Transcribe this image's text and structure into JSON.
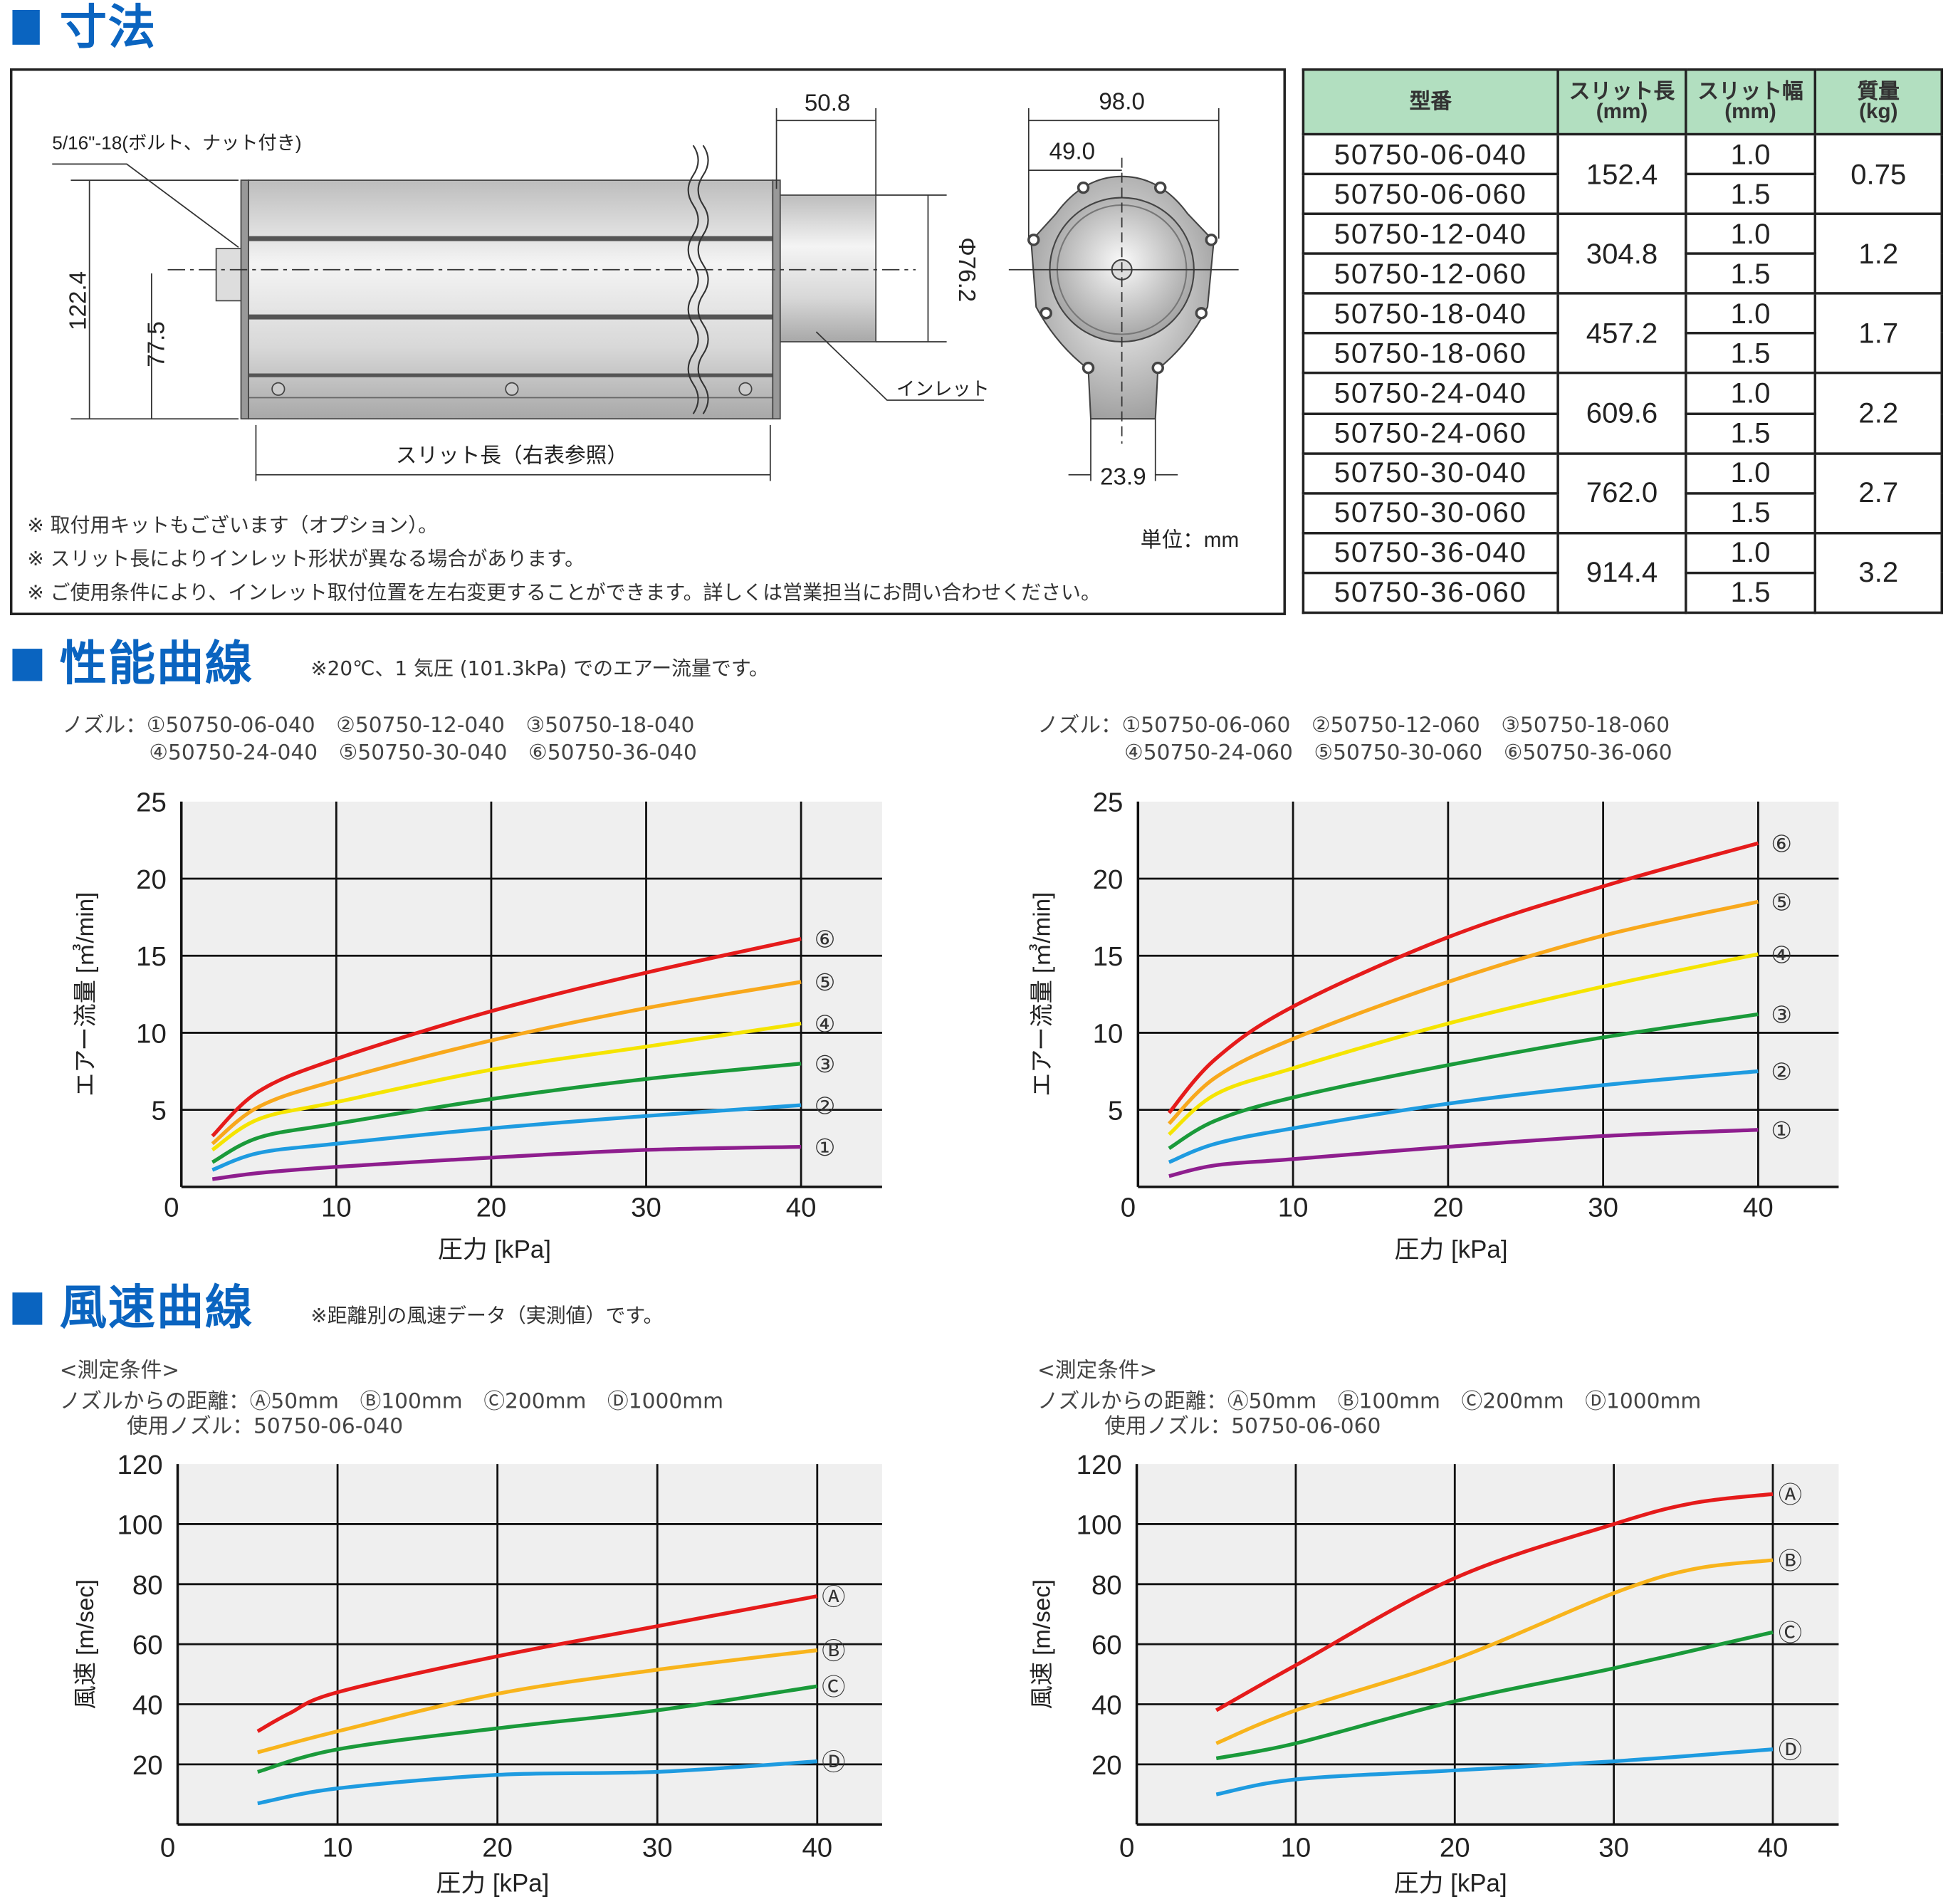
{
  "sections": {
    "dimensions": {
      "title": "寸法"
    },
    "performance": {
      "title": "性能曲線",
      "note": "※20℃、1 気圧 (101.3kPa) でのエアー流量です。"
    },
    "wind": {
      "title": "風速曲線",
      "note": "※距離別の風速データ（実測値）です。"
    }
  },
  "drawing": {
    "bolt_label": "5/16\"-18(ボルト、ナット付き)",
    "dim_height_total": "122.4",
    "dim_height_center": "77.5",
    "dim_inlet_length": "50.8",
    "dim_inlet_diameter": "Φ76.2",
    "inlet_label": "インレット",
    "slit_length_label": "スリット長（右表参照）",
    "dim_width": "98.0",
    "dim_half_width": "49.0",
    "dim_neck": "23.9",
    "unit": "単位：mm",
    "notes": [
      "※ 取付用キットもございます（オプション）。",
      "※ スリット長によりインレット形状が異なる場合があります。",
      "※ ご使用条件により、インレット取付位置を左右変更することができます。詳しくは営業担当にお問い合わせください。"
    ]
  },
  "spec_table": {
    "headers": {
      "model": "型番",
      "slit_length": "スリット長",
      "slit_length_unit": "(mm)",
      "slit_width": "スリット幅",
      "slit_width_unit": "(mm)",
      "mass": "質量",
      "mass_unit": "(kg)"
    },
    "header_color": "#b2dfc0",
    "groups": [
      {
        "slit_length": "152.4",
        "mass": "0.75",
        "variants": [
          {
            "model": "50750-06-040",
            "width": "1.0"
          },
          {
            "model": "50750-06-060",
            "width": "1.5"
          }
        ]
      },
      {
        "slit_length": "304.8",
        "mass": "1.2",
        "variants": [
          {
            "model": "50750-12-040",
            "width": "1.0"
          },
          {
            "model": "50750-12-060",
            "width": "1.5"
          }
        ]
      },
      {
        "slit_length": "457.2",
        "mass": "1.7",
        "variants": [
          {
            "model": "50750-18-040",
            "width": "1.0"
          },
          {
            "model": "50750-18-060",
            "width": "1.5"
          }
        ]
      },
      {
        "slit_length": "609.6",
        "mass": "2.2",
        "variants": [
          {
            "model": "50750-24-040",
            "width": "1.0"
          },
          {
            "model": "50750-24-060",
            "width": "1.5"
          }
        ]
      },
      {
        "slit_length": "762.0",
        "mass": "2.7",
        "variants": [
          {
            "model": "50750-30-040",
            "width": "1.0"
          },
          {
            "model": "50750-30-060",
            "width": "1.5"
          }
        ]
      },
      {
        "slit_length": "914.4",
        "mass": "3.2",
        "variants": [
          {
            "model": "50750-36-040",
            "width": "1.0"
          },
          {
            "model": "50750-36-060",
            "width": "1.5"
          }
        ]
      }
    ]
  },
  "legends": {
    "perf_left": [
      "ノズル：①50750-06-040　②50750-12-040　③50750-18-040",
      "④50750-24-040　⑤50750-30-040　⑥50750-36-040"
    ],
    "perf_right": [
      "ノズル：①50750-06-060　②50750-12-060　③50750-18-060",
      "④50750-24-060　⑤50750-30-060　⑥50750-36-060"
    ],
    "wind_left": [
      "<測定条件>",
      "ノズルからの距離：Ⓐ50mm　Ⓑ100mm　Ⓒ200mm　Ⓓ1000mm",
      "使用ノズル：50750-06-040"
    ],
    "wind_right": [
      "<測定条件>",
      "ノズルからの距離：Ⓐ50mm　Ⓑ100mm　Ⓒ200mm　Ⓓ1000mm",
      "使用ノズル：50750-06-060"
    ]
  },
  "chart_data": [
    {
      "type": "line",
      "xlabel": "圧力 [kPa]",
      "ylabel": "エアー流量 [㎥/min]",
      "xlim": [
        0,
        45
      ],
      "ylim": [
        0,
        25
      ],
      "xticks": [
        0,
        10,
        20,
        30,
        40
      ],
      "yticks": [
        5,
        10,
        15,
        20,
        25
      ],
      "grid": true,
      "series": [
        {
          "name": "①",
          "color": "#8e1e8e",
          "points": [
            [
              2,
              0.5
            ],
            [
              5,
              0.9
            ],
            [
              10,
              1.3
            ],
            [
              20,
              1.9
            ],
            [
              30,
              2.4
            ],
            [
              40,
              2.6
            ]
          ]
        },
        {
          "name": "②",
          "color": "#1e9be0",
          "points": [
            [
              2,
              1.1
            ],
            [
              5,
              2.2
            ],
            [
              10,
              2.8
            ],
            [
              20,
              3.8
            ],
            [
              30,
              4.6
            ],
            [
              40,
              5.3
            ]
          ]
        },
        {
          "name": "③",
          "color": "#1a9a3a",
          "points": [
            [
              2,
              1.6
            ],
            [
              5,
              3.2
            ],
            [
              10,
              4.1
            ],
            [
              20,
              5.7
            ],
            [
              30,
              7.0
            ],
            [
              40,
              8.0
            ]
          ]
        },
        {
          "name": "④",
          "color": "#f5e400",
          "points": [
            [
              2,
              2.4
            ],
            [
              5,
              4.4
            ],
            [
              10,
              5.5
            ],
            [
              20,
              7.6
            ],
            [
              30,
              9.1
            ],
            [
              40,
              10.6
            ]
          ]
        },
        {
          "name": "⑤",
          "color": "#f8a81c",
          "points": [
            [
              2,
              2.8
            ],
            [
              5,
              5.2
            ],
            [
              10,
              6.9
            ],
            [
              20,
              9.5
            ],
            [
              30,
              11.6
            ],
            [
              40,
              13.3
            ]
          ]
        },
        {
          "name": "⑥",
          "color": "#e51b1b",
          "points": [
            [
              2,
              3.3
            ],
            [
              5,
              6.2
            ],
            [
              10,
              8.3
            ],
            [
              20,
              11.4
            ],
            [
              30,
              13.9
            ],
            [
              40,
              16.1
            ]
          ]
        }
      ]
    },
    {
      "type": "line",
      "xlabel": "圧力 [kPa]",
      "ylabel": "エアー流量 [㎥/min]",
      "xlim": [
        0,
        45
      ],
      "ylim": [
        0,
        25
      ],
      "xticks": [
        0,
        10,
        20,
        30,
        40
      ],
      "yticks": [
        5,
        10,
        15,
        20,
        25
      ],
      "grid": true,
      "series": [
        {
          "name": "①",
          "color": "#8e1e8e",
          "points": [
            [
              2,
              0.7
            ],
            [
              5,
              1.4
            ],
            [
              10,
              1.8
            ],
            [
              20,
              2.6
            ],
            [
              30,
              3.3
            ],
            [
              40,
              3.7
            ]
          ]
        },
        {
          "name": "②",
          "color": "#1e9be0",
          "points": [
            [
              2,
              1.6
            ],
            [
              5,
              2.8
            ],
            [
              10,
              3.8
            ],
            [
              20,
              5.4
            ],
            [
              30,
              6.6
            ],
            [
              40,
              7.5
            ]
          ]
        },
        {
          "name": "③",
          "color": "#1a9a3a",
          "points": [
            [
              2,
              2.5
            ],
            [
              5,
              4.3
            ],
            [
              10,
              5.8
            ],
            [
              20,
              7.9
            ],
            [
              30,
              9.7
            ],
            [
              40,
              11.2
            ]
          ]
        },
        {
          "name": "④",
          "color": "#f5e400",
          "points": [
            [
              2,
              3.4
            ],
            [
              5,
              6.0
            ],
            [
              10,
              7.7
            ],
            [
              20,
              10.6
            ],
            [
              30,
              13.0
            ],
            [
              40,
              15.1
            ]
          ]
        },
        {
          "name": "⑤",
          "color": "#f8a81c",
          "points": [
            [
              2,
              4.1
            ],
            [
              5,
              7.1
            ],
            [
              10,
              9.6
            ],
            [
              20,
              13.3
            ],
            [
              30,
              16.3
            ],
            [
              40,
              18.5
            ]
          ]
        },
        {
          "name": "⑥",
          "color": "#e51b1b",
          "points": [
            [
              2,
              4.8
            ],
            [
              5,
              8.3
            ],
            [
              10,
              11.7
            ],
            [
              20,
              16.2
            ],
            [
              30,
              19.5
            ],
            [
              40,
              22.3
            ]
          ]
        }
      ]
    },
    {
      "type": "line",
      "xlabel": "圧力 [kPa]",
      "ylabel": "風速 [m/sec]",
      "xlim": [
        0,
        44
      ],
      "ylim": [
        0,
        120
      ],
      "xticks": [
        0,
        10,
        20,
        30,
        40
      ],
      "yticks": [
        20,
        40,
        60,
        80,
        100,
        120
      ],
      "grid": true,
      "series": [
        {
          "name": "Ⓐ",
          "color": "#e51b1b",
          "points": [
            [
              5,
              31
            ],
            [
              7,
              37
            ],
            [
              10,
              44
            ],
            [
              20,
              56
            ],
            [
              30,
              66
            ],
            [
              40,
              76
            ]
          ]
        },
        {
          "name": "Ⓑ",
          "color": "#f8b41c",
          "points": [
            [
              5,
              24
            ],
            [
              10,
              31
            ],
            [
              20,
              43.5
            ],
            [
              30,
              51.5
            ],
            [
              40,
              58
            ]
          ]
        },
        {
          "name": "Ⓒ",
          "color": "#1a9a3a",
          "points": [
            [
              5,
              17.5
            ],
            [
              10,
              25
            ],
            [
              20,
              32
            ],
            [
              30,
              38
            ],
            [
              40,
              46
            ]
          ]
        },
        {
          "name": "Ⓓ",
          "color": "#1e9be0",
          "points": [
            [
              5,
              7
            ],
            [
              10,
              12
            ],
            [
              20,
              16.5
            ],
            [
              30,
              17.5
            ],
            [
              40,
              21
            ]
          ]
        }
      ]
    },
    {
      "type": "line",
      "xlabel": "圧力 [kPa]",
      "ylabel": "風速 [m/sec]",
      "xlim": [
        0,
        44
      ],
      "ylim": [
        0,
        120
      ],
      "xticks": [
        0,
        10,
        20,
        30,
        40
      ],
      "yticks": [
        20,
        40,
        60,
        80,
        100,
        120
      ],
      "grid": true,
      "series": [
        {
          "name": "Ⓐ",
          "color": "#e51b1b",
          "points": [
            [
              5,
              38
            ],
            [
              10,
              53
            ],
            [
              20,
              82
            ],
            [
              30,
              100
            ],
            [
              35,
              107
            ],
            [
              40,
              110
            ]
          ]
        },
        {
          "name": "Ⓑ",
          "color": "#f8b41c",
          "points": [
            [
              5,
              27
            ],
            [
              10,
              38
            ],
            [
              20,
              55
            ],
            [
              30,
              77
            ],
            [
              35,
              85
            ],
            [
              40,
              88
            ]
          ]
        },
        {
          "name": "Ⓒ",
          "color": "#1a9a3a",
          "points": [
            [
              5,
              22
            ],
            [
              10,
              27
            ],
            [
              20,
              41
            ],
            [
              30,
              52
            ],
            [
              40,
              64
            ]
          ]
        },
        {
          "name": "Ⓓ",
          "color": "#1e9be0",
          "points": [
            [
              5,
              10
            ],
            [
              10,
              15
            ],
            [
              20,
              18
            ],
            [
              30,
              21
            ],
            [
              40,
              25
            ]
          ]
        }
      ]
    }
  ]
}
